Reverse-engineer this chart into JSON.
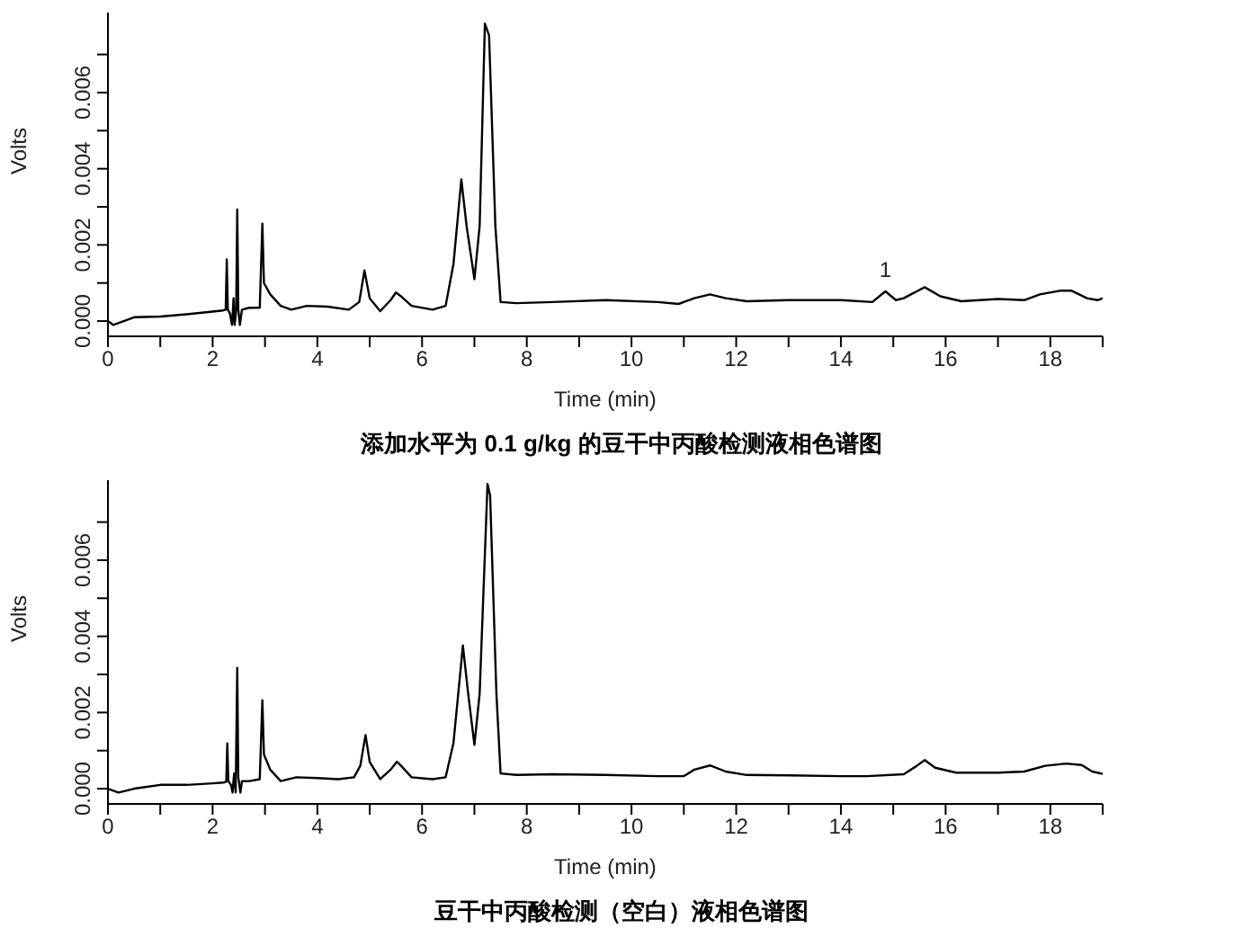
{
  "chart_data": [
    {
      "type": "line",
      "title": "添加水平为 0.1 g/kg 的豆干中丙酸检测液相色谱图",
      "xlabel": "Time (min)",
      "ylabel": "Volts",
      "xlim": [
        0,
        19
      ],
      "ylim": [
        -0.0004,
        0.0081
      ],
      "xticks": [
        0,
        {
          "value": 1,
          "label": null
        },
        2,
        {
          "value": 3,
          "label": null
        },
        4,
        {
          "value": 5,
          "label": null
        },
        6,
        {
          "value": 7,
          "label": null
        },
        8,
        {
          "value": 9,
          "label": null
        },
        10,
        {
          "value": 11,
          "label": null
        },
        12,
        {
          "value": 13,
          "label": null
        },
        14,
        {
          "value": 15,
          "label": null
        },
        16,
        {
          "value": 17,
          "label": null
        },
        18,
        {
          "value": 19,
          "label": null
        }
      ],
      "yticks": [
        {
          "value": 0,
          "label": "0.000"
        },
        {
          "value": 0.001,
          "label": null
        },
        0.002,
        {
          "value": 0.003,
          "label": null
        },
        0.004,
        {
          "value": 0.005,
          "label": null
        },
        0.006,
        {
          "value": 0.007,
          "label": null
        }
      ],
      "grid": false,
      "marker": "none",
      "line_style": "solid",
      "annotations": [
        {
          "text": "1",
          "x": 14.85,
          "y": 0.00078
        }
      ],
      "series": [
        {
          "color": "#000000",
          "x": [
            0,
            0.1,
            0.5,
            1.0,
            1.5,
            2.0,
            2.2,
            2.25,
            2.27,
            2.29,
            2.33,
            2.37,
            2.4,
            2.42,
            2.45,
            2.47,
            2.49,
            2.52,
            2.56,
            2.7,
            2.9,
            2.95,
            2.98,
            3.1,
            3.3,
            3.5,
            3.8,
            4.2,
            4.6,
            4.8,
            4.9,
            5.0,
            5.2,
            5.4,
            5.5,
            5.6,
            5.8,
            6.2,
            6.45,
            6.6,
            6.75,
            6.85,
            7.0,
            7.1,
            7.2,
            7.28,
            7.4,
            7.5,
            7.8,
            8.5,
            9.5,
            10.5,
            10.9,
            11.2,
            11.5,
            11.8,
            12.2,
            13,
            14,
            14.6,
            14.85,
            15.05,
            15.2,
            15.6,
            15.9,
            16.3,
            17,
            17.5,
            17.8,
            18.2,
            18.4,
            18.7,
            18.9,
            19
          ],
          "values": [
            0,
            -0.0001,
            0.0001,
            0.00012,
            0.00018,
            0.00025,
            0.00028,
            0.0003,
            0.00162,
            0.0003,
            0.0002,
            -0.0001,
            0.0006,
            -0.0001,
            0.0003,
            0.00293,
            0.0003,
            -0.0001,
            0.0003,
            0.00035,
            0.00035,
            0.00256,
            0.001,
            0.0007,
            0.0004,
            0.0003,
            0.0004,
            0.00038,
            0.0003,
            0.0005,
            0.00133,
            0.0006,
            0.00026,
            0.00055,
            0.00075,
            0.00065,
            0.0004,
            0.0003,
            0.0004,
            0.0015,
            0.00372,
            0.0025,
            0.0011,
            0.0025,
            0.00781,
            0.0075,
            0.0025,
            0.0005,
            0.00047,
            0.0005,
            0.00055,
            0.0005,
            0.00045,
            0.0006,
            0.0007,
            0.0006,
            0.00052,
            0.00055,
            0.00055,
            0.0005,
            0.00078,
            0.00055,
            0.0006,
            0.00089,
            0.00065,
            0.00052,
            0.00058,
            0.00055,
            0.0007,
            0.0008,
            0.0008,
            0.0006,
            0.00055,
            0.0006
          ]
        }
      ]
    },
    {
      "type": "line",
      "title": "豆干中丙酸检测（空白）液相色谱图",
      "xlabel": "Time (min)",
      "ylabel": "Volts",
      "xlim": [
        0,
        19
      ],
      "ylim": [
        -0.0004,
        0.0081
      ],
      "xticks": [
        0,
        {
          "value": 1,
          "label": null
        },
        2,
        {
          "value": 3,
          "label": null
        },
        4,
        {
          "value": 5,
          "label": null
        },
        6,
        {
          "value": 7,
          "label": null
        },
        8,
        {
          "value": 9,
          "label": null
        },
        10,
        {
          "value": 11,
          "label": null
        },
        12,
        {
          "value": 13,
          "label": null
        },
        14,
        {
          "value": 15,
          "label": null
        },
        16,
        {
          "value": 17,
          "label": null
        },
        18,
        {
          "value": 19,
          "label": null
        }
      ],
      "yticks": [
        {
          "value": 0,
          "label": "0.000"
        },
        {
          "value": 0.001,
          "label": null
        },
        0.002,
        {
          "value": 0.003,
          "label": null
        },
        0.004,
        {
          "value": 0.005,
          "label": null
        },
        0.006,
        {
          "value": 0.007,
          "label": null
        }
      ],
      "grid": false,
      "marker": "none",
      "line_style": "solid",
      "series": [
        {
          "color": "#000000",
          "x": [
            0,
            0.2,
            0.5,
            1.0,
            1.5,
            2.0,
            2.2,
            2.26,
            2.28,
            2.3,
            2.35,
            2.38,
            2.41,
            2.44,
            2.47,
            2.49,
            2.53,
            2.56,
            2.7,
            2.9,
            2.95,
            2.98,
            3.1,
            3.3,
            3.6,
            4.0,
            4.4,
            4.7,
            4.82,
            4.92,
            5.0,
            5.2,
            5.4,
            5.52,
            5.6,
            5.8,
            6.2,
            6.45,
            6.6,
            6.78,
            6.88,
            7.0,
            7.1,
            7.25,
            7.3,
            7.42,
            7.5,
            7.8,
            8.5,
            9.5,
            10.5,
            11.0,
            11.2,
            11.5,
            11.8,
            12.2,
            13,
            14,
            14.5,
            15.2,
            15.45,
            15.6,
            15.8,
            16.2,
            17,
            17.5,
            17.9,
            18.3,
            18.6,
            18.8,
            19
          ],
          "values": [
            0,
            -0.0001,
            0,
            0.0001,
            0.0001,
            0.00014,
            0.00016,
            0.00018,
            0.00119,
            0.0002,
            0.0001,
            -0.0001,
            0.0004,
            -0.0001,
            0.00317,
            0.0003,
            -0.0001,
            0.0002,
            0.0002,
            0.00025,
            0.00232,
            0.0009,
            0.0005,
            0.0002,
            0.0003,
            0.00028,
            0.00025,
            0.0003,
            0.0006,
            0.00141,
            0.0007,
            0.00025,
            0.0005,
            0.00071,
            0.0006,
            0.0003,
            0.00025,
            0.0003,
            0.0012,
            0.00376,
            0.0025,
            0.00115,
            0.0025,
            0.008,
            0.0077,
            0.0025,
            0.0004,
            0.00036,
            0.00038,
            0.00036,
            0.00033,
            0.00033,
            0.0005,
            0.00061,
            0.00045,
            0.00036,
            0.00035,
            0.00033,
            0.00033,
            0.00038,
            0.0006,
            0.00075,
            0.00055,
            0.00042,
            0.00042,
            0.00045,
            0.0006,
            0.00066,
            0.00062,
            0.00045,
            0.00039
          ]
        }
      ]
    }
  ]
}
